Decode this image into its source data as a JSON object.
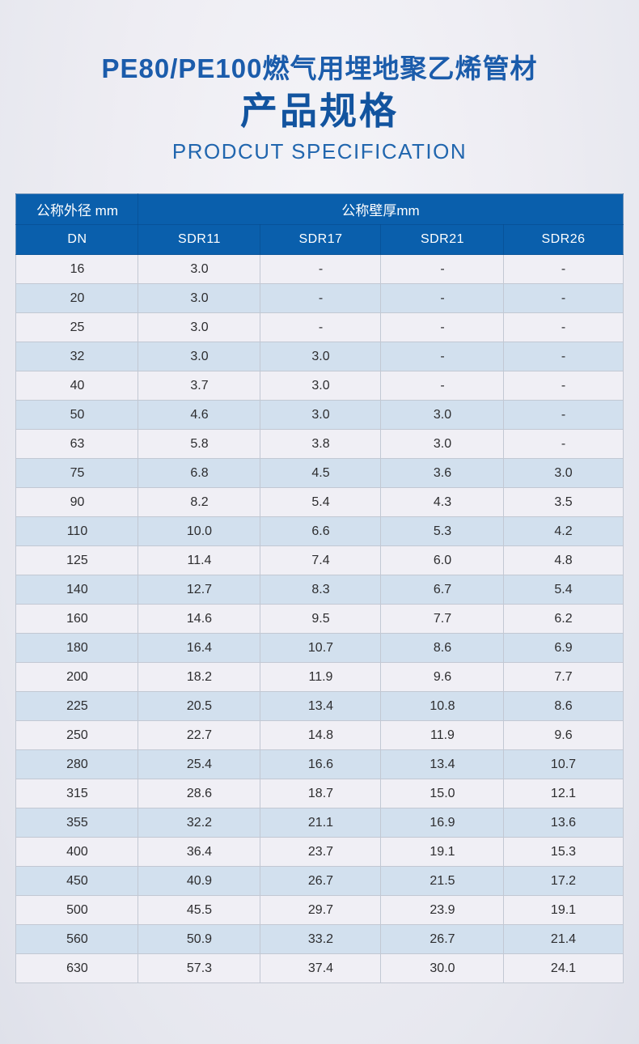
{
  "header": {
    "title_cn_line1": "PE80/PE100燃气用埋地聚乙烯管材",
    "title_cn_line2": "产品规格",
    "title_en": "PRODCUT SPECIFICATION"
  },
  "colors": {
    "header_blue": "#0a5fac",
    "title_blue": "#12549f",
    "subtitle_blue": "#2166ae",
    "row_light": "#f0eff5",
    "row_blue": "#d2e0ee",
    "cell_border": "#c2c8d3",
    "cell_text": "#2d2d2f"
  },
  "table": {
    "header_row1": {
      "outer_diameter": "公称外径  mm",
      "wall_thickness": "公称壁厚mm"
    },
    "header_row2": [
      "DN",
      "SDR11",
      "SDR17",
      "SDR21",
      "SDR26"
    ],
    "rows": [
      [
        "16",
        "3.0",
        "-",
        "-",
        "-"
      ],
      [
        "20",
        "3.0",
        "-",
        "-",
        "-"
      ],
      [
        "25",
        "3.0",
        "-",
        "-",
        "-"
      ],
      [
        "32",
        "3.0",
        "3.0",
        "-",
        "-"
      ],
      [
        "40",
        "3.7",
        "3.0",
        "-",
        "-"
      ],
      [
        "50",
        "4.6",
        "3.0",
        "3.0",
        "-"
      ],
      [
        "63",
        "5.8",
        "3.8",
        "3.0",
        "-"
      ],
      [
        "75",
        "6.8",
        "4.5",
        "3.6",
        "3.0"
      ],
      [
        "90",
        "8.2",
        "5.4",
        "4.3",
        "3.5"
      ],
      [
        "110",
        "10.0",
        "6.6",
        "5.3",
        "4.2"
      ],
      [
        "125",
        "11.4",
        "7.4",
        "6.0",
        "4.8"
      ],
      [
        "140",
        "12.7",
        "8.3",
        "6.7",
        "5.4"
      ],
      [
        "160",
        "14.6",
        "9.5",
        "7.7",
        "6.2"
      ],
      [
        "180",
        "16.4",
        "10.7",
        "8.6",
        "6.9"
      ],
      [
        "200",
        "18.2",
        "11.9",
        "9.6",
        "7.7"
      ],
      [
        "225",
        "20.5",
        "13.4",
        "10.8",
        "8.6"
      ],
      [
        "250",
        "22.7",
        "14.8",
        "11.9",
        "9.6"
      ],
      [
        "280",
        "25.4",
        "16.6",
        "13.4",
        "10.7"
      ],
      [
        "315",
        "28.6",
        "18.7",
        "15.0",
        "12.1"
      ],
      [
        "355",
        "32.2",
        "21.1",
        "16.9",
        "13.6"
      ],
      [
        "400",
        "36.4",
        "23.7",
        "19.1",
        "15.3"
      ],
      [
        "450",
        "40.9",
        "26.7",
        "21.5",
        "17.2"
      ],
      [
        "500",
        "45.5",
        "29.7",
        "23.9",
        "19.1"
      ],
      [
        "560",
        "50.9",
        "33.2",
        "26.7",
        "21.4"
      ],
      [
        "630",
        "57.3",
        "37.4",
        "30.0",
        "24.1"
      ]
    ]
  }
}
